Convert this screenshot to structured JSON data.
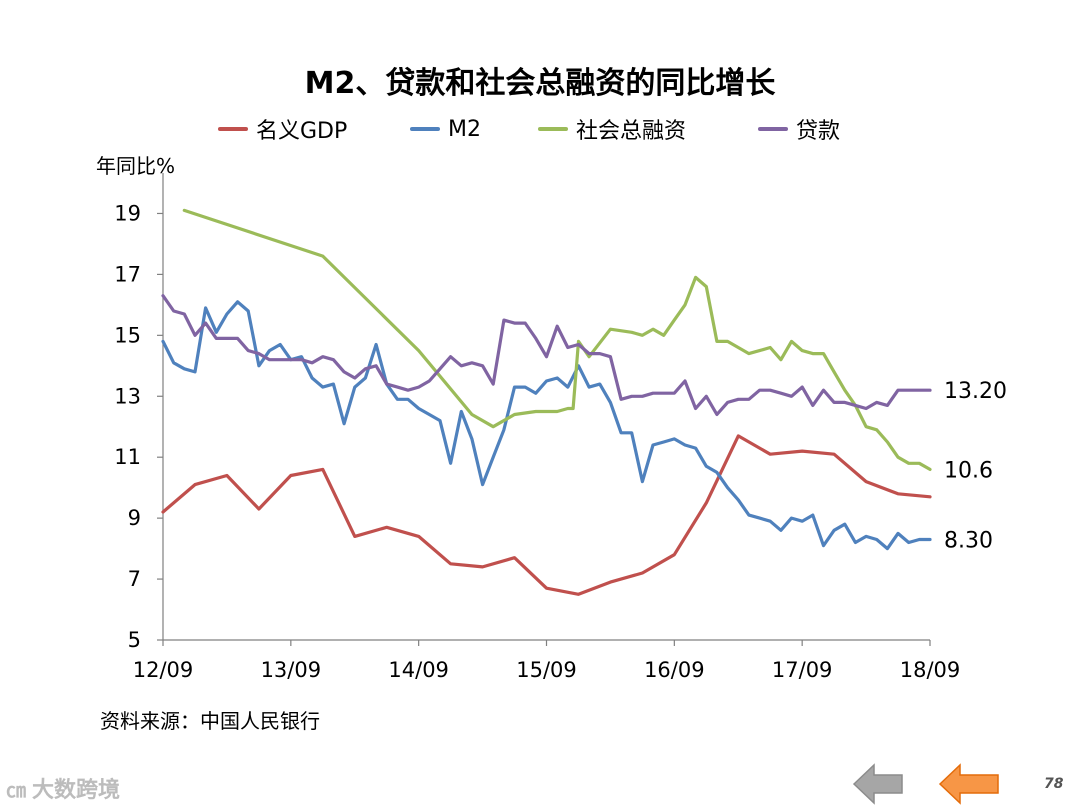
{
  "chart_data": {
    "type": "line",
    "title": "M2、贷款和社会总融资的同比增长",
    "ylabel": "年同比%",
    "xlabel": "",
    "ylim": [
      5,
      20
    ],
    "yticks": [
      5,
      7,
      9,
      11,
      13,
      15,
      17,
      19
    ],
    "xlim": [
      0,
      72
    ],
    "x_tick_labels": [
      "12/09",
      "13/09",
      "14/09",
      "15/09",
      "16/09",
      "17/09",
      "18/09"
    ],
    "x_tick_positions": [
      0,
      12,
      24,
      36,
      48,
      60,
      72
    ],
    "legend_position": "top",
    "series": [
      {
        "name": "名义GDP",
        "color": "#C0504D",
        "x": [
          0,
          3,
          6,
          9,
          12,
          15,
          18,
          21,
          24,
          27,
          30,
          33,
          36,
          39,
          42,
          45,
          48,
          51,
          54,
          57,
          60,
          63,
          66,
          69,
          72
        ],
        "y": [
          9.2,
          10.1,
          10.4,
          9.3,
          10.4,
          10.6,
          8.4,
          8.7,
          8.4,
          7.5,
          7.4,
          7.7,
          6.7,
          6.5,
          6.9,
          7.2,
          7.8,
          9.5,
          11.7,
          11.1,
          11.2,
          11.1,
          10.2,
          9.8,
          9.7
        ]
      },
      {
        "name": "M2",
        "color": "#4F81BD",
        "x": [
          0,
          1,
          2,
          3,
          4,
          5,
          6,
          7,
          8,
          9,
          10,
          11,
          12,
          13,
          14,
          15,
          16,
          17,
          18,
          19,
          20,
          21,
          22,
          23,
          24,
          25,
          26,
          27,
          28,
          29,
          30,
          31,
          32,
          33,
          34,
          35,
          36,
          37,
          38,
          39,
          40,
          41,
          42,
          43,
          44,
          45,
          46,
          47,
          48,
          49,
          50,
          51,
          52,
          53,
          54,
          55,
          56,
          57,
          58,
          59,
          60,
          61,
          62,
          63,
          64,
          65,
          66,
          67,
          68,
          69,
          70,
          71,
          72
        ],
        "y": [
          14.8,
          14.1,
          13.9,
          13.8,
          15.9,
          15.1,
          15.7,
          16.1,
          15.8,
          14.0,
          14.5,
          14.7,
          14.2,
          14.3,
          13.6,
          13.3,
          13.4,
          12.1,
          13.3,
          13.6,
          14.7,
          13.4,
          12.9,
          12.9,
          12.6,
          12.4,
          12.2,
          10.8,
          12.5,
          11.6,
          10.1,
          11.0,
          11.9,
          13.3,
          13.3,
          13.1,
          13.5,
          13.6,
          13.3,
          14.0,
          13.3,
          13.4,
          12.8,
          11.8,
          11.8,
          10.2,
          11.4,
          11.5,
          11.6,
          11.4,
          11.3,
          10.7,
          10.5,
          10.0,
          9.6,
          9.1,
          9.0,
          8.9,
          8.6,
          9.0,
          8.9,
          9.1,
          8.1,
          8.6,
          8.8,
          8.2,
          8.4,
          8.3,
          8.0,
          8.5,
          8.2,
          8.3,
          8.3
        ]
      },
      {
        "name": "社会总融资",
        "color": "#9BBB59",
        "x": [
          2,
          15,
          24,
          29,
          31,
          33,
          35,
          35.5,
          36,
          37,
          38,
          38.5,
          39,
          40,
          42,
          44,
          45,
          46,
          47,
          48,
          49,
          50,
          51,
          52,
          53,
          55,
          56,
          57,
          58,
          59,
          60,
          61,
          62,
          63,
          64,
          65,
          66,
          67,
          68,
          69,
          70,
          71,
          72
        ],
        "y": [
          19.1,
          17.6,
          14.5,
          12.4,
          12.0,
          12.4,
          12.5,
          12.5,
          12.5,
          12.5,
          12.6,
          12.6,
          14.8,
          14.3,
          15.2,
          15.1,
          15.0,
          15.2,
          15.0,
          15.5,
          16.0,
          16.9,
          16.6,
          14.8,
          14.8,
          14.4,
          14.5,
          14.6,
          14.2,
          14.8,
          14.5,
          14.4,
          14.4,
          13.8,
          13.2,
          12.7,
          12.0,
          11.9,
          11.5,
          11.0,
          10.8,
          10.8,
          10.6
        ]
      },
      {
        "name": "贷款",
        "color": "#8064A2",
        "x": [
          0,
          1,
          2,
          3,
          4,
          5,
          6,
          7,
          8,
          9,
          10,
          11,
          12,
          13,
          14,
          15,
          16,
          17,
          18,
          19,
          20,
          21,
          22,
          23,
          24,
          25,
          26,
          27,
          28,
          29,
          30,
          31,
          32,
          33,
          34,
          35,
          36,
          37,
          38,
          39,
          40,
          41,
          42,
          43,
          44,
          45,
          46,
          47,
          48,
          49,
          50,
          51,
          52,
          53,
          54,
          55,
          56,
          57,
          58,
          59,
          60,
          61,
          62,
          63,
          64,
          65,
          66,
          67,
          68,
          69,
          70,
          71,
          72
        ],
        "y": [
          16.3,
          15.8,
          15.7,
          15.0,
          15.4,
          14.9,
          14.9,
          14.9,
          14.5,
          14.4,
          14.2,
          14.2,
          14.2,
          14.2,
          14.1,
          14.3,
          14.2,
          13.8,
          13.6,
          13.9,
          14.0,
          13.4,
          13.3,
          13.2,
          13.3,
          13.5,
          13.9,
          14.3,
          14.0,
          14.1,
          14.0,
          13.4,
          15.5,
          15.4,
          15.4,
          14.9,
          14.3,
          15.3,
          14.6,
          14.7,
          14.4,
          14.4,
          14.3,
          12.9,
          13.0,
          13.0,
          13.1,
          13.1,
          13.1,
          13.5,
          12.6,
          13.0,
          12.4,
          12.8,
          12.9,
          12.9,
          13.2,
          13.2,
          13.1,
          13.0,
          13.3,
          12.7,
          13.2,
          12.8,
          12.8,
          12.7,
          12.6,
          12.8,
          12.7,
          13.2,
          13.2,
          13.2,
          13.2
        ]
      }
    ],
    "end_labels": [
      {
        "series": "贷款",
        "text": "13.20"
      },
      {
        "series": "社会总融资",
        "text": "10.6"
      },
      {
        "series": "M2",
        "text": "8.30"
      }
    ]
  },
  "source": "资料来源：中国人民银行",
  "watermark": "大数跨境",
  "watermark_icon": "㎝",
  "nav": {
    "prev_icon": "left-arrow",
    "next_icon": "left-arrow",
    "prev_color": "#A6A6A6",
    "next_color": "#F79646"
  },
  "page_number": "78"
}
